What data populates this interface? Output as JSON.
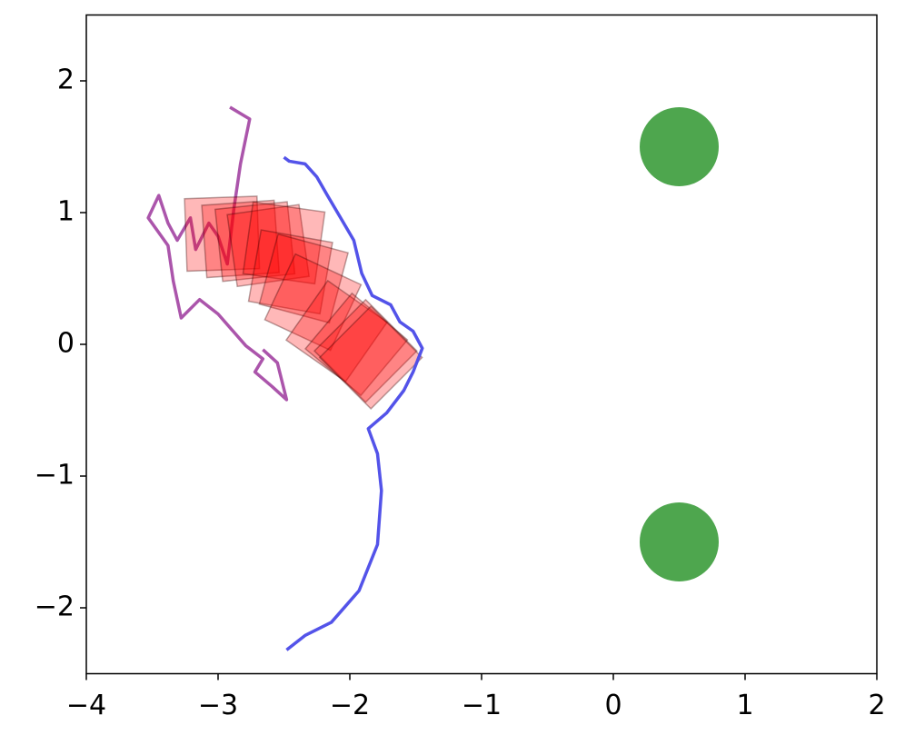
{
  "chart_data": {
    "type": "line",
    "xlim": [
      -4,
      2
    ],
    "ylim": [
      -2.5,
      2.5
    ],
    "xticks": [
      {
        "value": -4,
        "label": "−4"
      },
      {
        "value": -3,
        "label": "−3"
      },
      {
        "value": -2,
        "label": "−2"
      },
      {
        "value": -1,
        "label": "−1"
      },
      0,
      1,
      2
    ],
    "yticks": [
      {
        "value": -2,
        "label": "−2"
      },
      {
        "value": -1,
        "label": "−1"
      },
      0,
      1,
      2
    ],
    "series": [
      {
        "color": "#a64ca6",
        "x": [
          -2.91,
          -2.76,
          -2.83,
          -2.88,
          -2.93,
          -3.0,
          -3.07,
          -3.17,
          -3.21,
          -3.31,
          -3.38,
          -3.45,
          -3.53,
          -3.38,
          -3.34,
          -3.28,
          -3.14,
          -3.0,
          -2.79,
          -2.66,
          -2.72,
          -2.59,
          -2.48,
          -2.55,
          -2.66
        ],
        "values": [
          1.8,
          1.71,
          1.37,
          1.03,
          0.61,
          0.82,
          0.92,
          0.72,
          0.96,
          0.79,
          0.92,
          1.13,
          0.96,
          0.75,
          0.48,
          0.2,
          0.34,
          0.23,
          -0.01,
          -0.11,
          -0.21,
          -0.32,
          -0.42,
          -0.14,
          -0.04
        ]
      },
      {
        "color": "#4a4ae8",
        "x": [
          -2.5,
          -2.46,
          -2.34,
          -2.25,
          -2.17,
          -2.07,
          -1.97,
          -1.91,
          -1.83,
          -1.69,
          -1.62,
          -1.52,
          -1.45,
          -1.52,
          -1.59,
          -1.72,
          -1.86,
          -1.79,
          -1.76,
          -1.79,
          -1.93,
          -2.14,
          -2.34,
          -2.48
        ],
        "values": [
          1.42,
          1.39,
          1.37,
          1.27,
          1.13,
          0.96,
          0.79,
          0.54,
          0.37,
          0.3,
          0.17,
          0.1,
          -0.03,
          -0.21,
          -0.35,
          -0.52,
          -0.64,
          -0.83,
          -1.11,
          -1.52,
          -1.87,
          -2.11,
          -2.21,
          -2.32
        ]
      }
    ],
    "squares": {
      "color": "#ff0000",
      "size": 0.55,
      "x": [
        -2.97,
        -2.83,
        -2.72,
        -2.62,
        -2.5,
        -2.45,
        -2.35,
        -2.28,
        -2.1,
        -1.95,
        -1.88,
        -1.84
      ],
      "values": [
        0.84,
        0.8,
        0.78,
        0.75,
        0.77,
        0.55,
        0.5,
        0.32,
        0.1,
        0.0,
        -0.05,
        -0.1
      ],
      "angle": [
        2,
        4,
        6,
        8,
        -8,
        -10,
        -15,
        -25,
        -35,
        -40,
        -45,
        -45
      ]
    },
    "circles": {
      "color": "#4ea64e",
      "radius": 0.3,
      "x": [
        0.5,
        0.5
      ],
      "values": [
        1.5,
        -1.5
      ]
    }
  }
}
